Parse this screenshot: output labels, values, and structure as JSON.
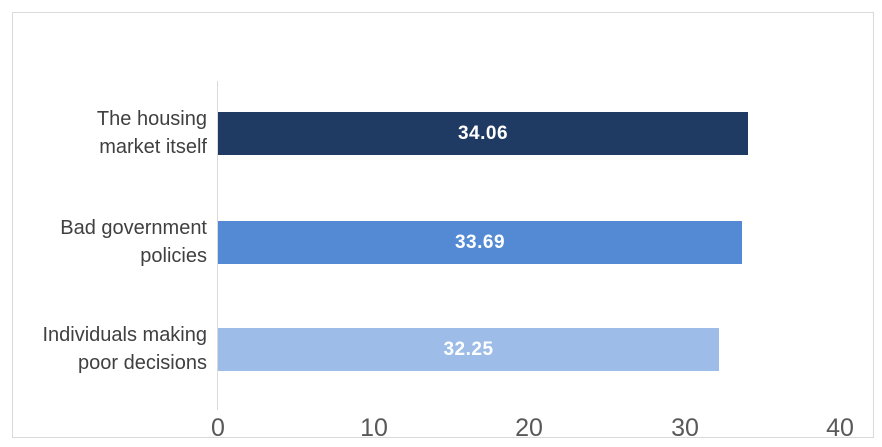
{
  "chart": {
    "background_color": "#FFFFFF",
    "frame_border_color": "#D9D9D9",
    "axis_line_color": "#D9D9D9",
    "tick_label_color": "#595959",
    "category_label_color": "#404040",
    "data_label_color": "#FFFFFF"
  },
  "chart_data": {
    "type": "bar",
    "orientation": "horizontal",
    "title": "",
    "xlabel": "",
    "ylabel": "",
    "grid": false,
    "legend": false,
    "categories": [
      "The housing market itself",
      "Bad government policies",
      "Individuals making poor decisions"
    ],
    "category_labels": [
      "The housing\nmarket itself",
      "Bad government\npolicies",
      "Individuals making\npoor decisions"
    ],
    "values": [
      34.06,
      33.69,
      32.25
    ],
    "data_labels": [
      "34.06",
      "33.69",
      "32.25"
    ],
    "bar_colors": [
      "#1F3A63",
      "#548AD3",
      "#9DBDE8"
    ],
    "xlim": [
      0,
      40
    ],
    "x_ticks": [
      0,
      10,
      20,
      30,
      40
    ],
    "x_tick_labels": [
      "0",
      "10",
      "20",
      "30",
      "40"
    ]
  }
}
